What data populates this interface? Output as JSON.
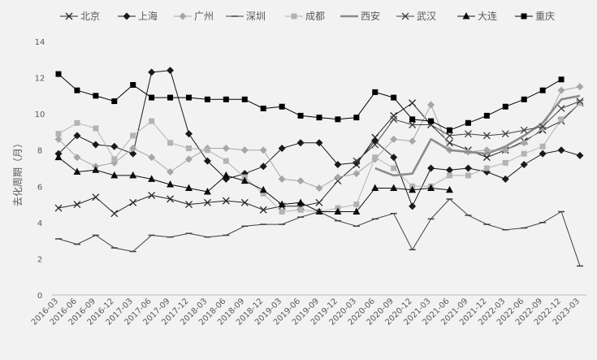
{
  "chart_data": {
    "type": "line",
    "title": "",
    "xlabel": "",
    "ylabel": "去化周期（月）",
    "ylim": [
      0,
      14
    ],
    "yticks": [
      "0",
      "2",
      "4",
      "6",
      "8",
      "10",
      "12",
      "14"
    ],
    "grid": false,
    "legend_position": "top",
    "categories": [
      "2016-03",
      "2016-06",
      "2016-09",
      "2016-12",
      "2017-03",
      "2017-06",
      "2017-09",
      "2017-12",
      "2018-03",
      "2018-06",
      "2018-09",
      "2018-12",
      "2019-03",
      "2019-06",
      "2019-09",
      "2019-12",
      "2020-03",
      "2020-06",
      "2020-09",
      "2020-12",
      "2021-03",
      "2021-06",
      "2021-09",
      "2021-12",
      "2022-03",
      "2022-06",
      "2022-09",
      "2022-12",
      "2023-03"
    ],
    "series": [
      {
        "name": "北京",
        "color": "#262626",
        "width": 1,
        "marker": "x",
        "values": [
          4.8,
          5.0,
          5.4,
          4.5,
          5.1,
          5.5,
          5.3,
          5.0,
          5.1,
          5.2,
          5.1,
          4.7,
          4.9,
          4.9,
          5.1,
          6.3,
          7.2,
          8.7,
          9.9,
          10.6,
          9.4,
          8.4,
          8.0,
          7.6,
          8.0,
          8.5,
          9.1,
          9.6,
          10.6
        ]
      },
      {
        "name": "上海",
        "color": "#1a1a1a",
        "width": 1,
        "marker": "diamond",
        "values": [
          7.8,
          8.8,
          8.3,
          8.2,
          7.8,
          12.3,
          12.4,
          8.9,
          7.4,
          6.4,
          6.7,
          7.1,
          8.1,
          8.4,
          8.4,
          7.2,
          7.3,
          8.5,
          7.6,
          4.9,
          7.0,
          6.9,
          7.0,
          6.8,
          6.4,
          7.2,
          7.8,
          8.0,
          7.7
        ]
      },
      {
        "name": "广州",
        "color": "#a6a6a6",
        "width": 1,
        "marker": "diamond",
        "values": [
          8.6,
          7.6,
          7.1,
          7.3,
          8.1,
          7.6,
          6.8,
          7.5,
          8.1,
          8.1,
          8.0,
          8.0,
          6.4,
          6.3,
          5.9,
          6.5,
          6.7,
          7.5,
          8.6,
          8.5,
          10.5,
          8.0,
          7.9,
          8.0,
          8.0,
          8.4,
          9.2,
          11.3,
          11.5
        ]
      },
      {
        "name": "深圳",
        "color": "#404040",
        "width": 1,
        "marker": "dash",
        "values": [
          3.1,
          2.8,
          3.3,
          2.6,
          2.4,
          3.3,
          3.2,
          3.4,
          3.2,
          3.3,
          3.8,
          3.9,
          3.9,
          4.3,
          4.6,
          4.1,
          3.8,
          4.2,
          4.5,
          2.5,
          4.2,
          5.3,
          4.4,
          3.9,
          3.6,
          3.7,
          4.0,
          4.6,
          1.6
        ]
      },
      {
        "name": "成都",
        "color": "#b3b3b3",
        "width": 1,
        "marker": "square",
        "values": [
          8.9,
          9.5,
          9.2,
          7.5,
          8.8,
          9.6,
          8.4,
          8.1,
          8.0,
          7.4,
          6.5,
          5.6,
          4.6,
          4.7,
          4.6,
          4.8,
          5.0,
          7.6,
          7.0,
          6.0,
          6.0,
          6.6,
          6.6,
          7.0,
          7.3,
          7.8,
          8.2,
          9.7,
          10.6
        ]
      },
      {
        "name": "西安",
        "color": "#8c8c8c",
        "width": 2.6,
        "marker": "none",
        "values": [
          null,
          null,
          null,
          null,
          null,
          null,
          null,
          null,
          null,
          null,
          null,
          null,
          null,
          null,
          null,
          null,
          null,
          7.0,
          6.6,
          6.7,
          8.6,
          8.0,
          7.9,
          7.8,
          8.2,
          8.8,
          9.5,
          10.8,
          11.0
        ]
      },
      {
        "name": "武汉",
        "color": "#404040",
        "width": 1,
        "marker": "x",
        "values": [
          null,
          null,
          null,
          null,
          null,
          null,
          null,
          null,
          null,
          null,
          null,
          null,
          null,
          null,
          null,
          null,
          7.4,
          8.3,
          9.7,
          9.4,
          9.4,
          8.8,
          8.9,
          8.8,
          8.9,
          9.1,
          9.3,
          10.3,
          10.7
        ]
      },
      {
        "name": "大连",
        "color": "#0d0d0d",
        "width": 1,
        "marker": "triangle",
        "values": [
          7.6,
          6.8,
          6.9,
          6.6,
          6.6,
          6.4,
          6.1,
          5.9,
          5.7,
          6.6,
          6.3,
          5.8,
          5.0,
          5.1,
          4.6,
          4.6,
          4.6,
          5.9,
          5.9,
          5.8,
          5.9,
          5.8,
          null,
          null,
          null,
          null,
          null,
          null,
          null
        ]
      },
      {
        "name": "重庆",
        "color": "#000000",
        "width": 1,
        "marker": "square",
        "values": [
          12.2,
          11.3,
          11.0,
          10.7,
          11.6,
          10.9,
          10.9,
          10.9,
          10.8,
          10.8,
          10.8,
          10.3,
          10.4,
          9.9,
          9.8,
          9.7,
          9.8,
          11.2,
          10.9,
          9.7,
          9.6,
          9.1,
          9.5,
          9.9,
          10.4,
          10.8,
          11.3,
          11.9,
          null
        ]
      }
    ]
  }
}
